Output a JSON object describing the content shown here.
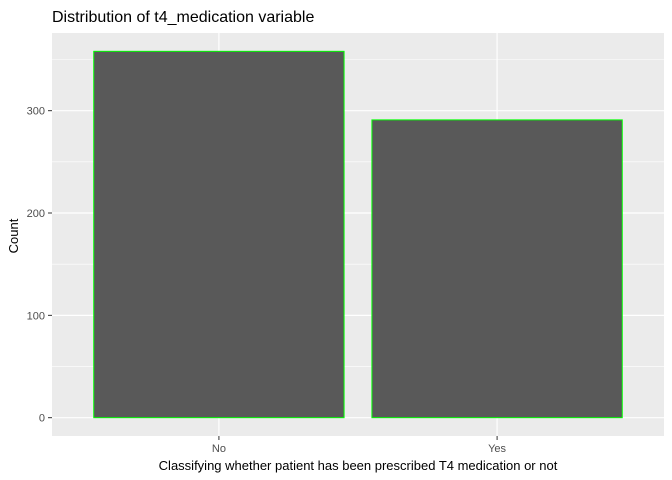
{
  "chart_data": {
    "type": "bar",
    "title": "Distribution of t4_medication variable",
    "xlabel": "Classifying whether patient has been prescribed T4 medication or not",
    "ylabel": "Count",
    "categories": [
      "No",
      "Yes"
    ],
    "values": [
      358,
      291
    ],
    "ylim": [
      -17.9,
      375.9
    ],
    "yticks": [
      0,
      100,
      200,
      300
    ],
    "grid": true,
    "bar_fill": "#595959",
    "bar_outline": "#00ff00",
    "panel_background": "#ebebeb",
    "gridline_color": "#ffffff"
  }
}
